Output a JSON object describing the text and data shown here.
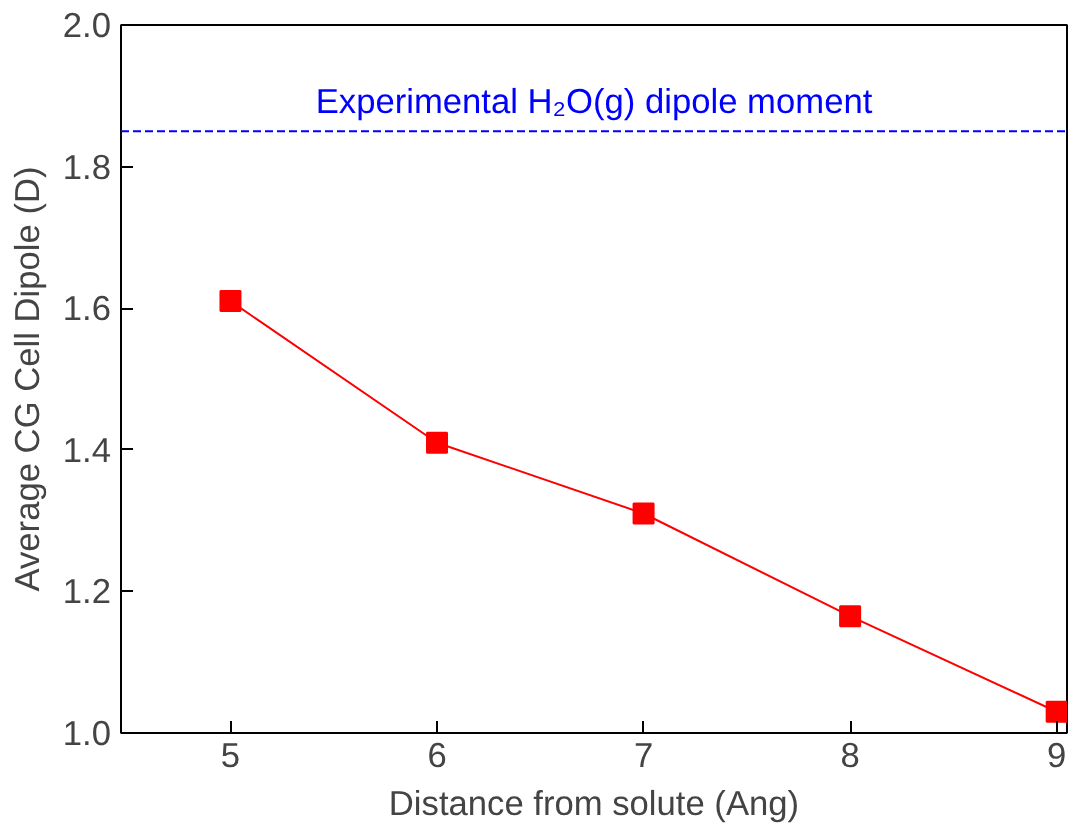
{
  "chart_data": {
    "type": "line",
    "xlabel": "Distance from solute (Ang)",
    "ylabel": "Average CG Cell Dipole (D)",
    "x": [
      5,
      6,
      7,
      8,
      9
    ],
    "series": [
      {
        "color": "#ff0000",
        "values": [
          1.61,
          1.41,
          1.31,
          1.165,
          1.03
        ]
      }
    ],
    "marker": "square",
    "line_style": "solid",
    "xlim": [
      4.47,
      9.05
    ],
    "ylim": [
      1.0,
      2.0
    ],
    "xticks": [
      5,
      6,
      7,
      8,
      9
    ],
    "yticks": [
      {
        "value": 1.0,
        "label": "1.0"
      },
      {
        "value": 1.2,
        "label": "1.2"
      },
      {
        "value": 1.4,
        "label": "1.4"
      },
      {
        "value": 1.6,
        "label": "1.6"
      },
      {
        "value": 1.8,
        "label": "1.8"
      },
      {
        "value": 2.0,
        "label": "2.0"
      }
    ],
    "ref_lines": [
      {
        "axis": "y",
        "value": 1.85,
        "label": "Experimental H₂O(g) dipole moment",
        "color": "#0000ff",
        "line_style": "dashed"
      }
    ],
    "grid": false
  }
}
